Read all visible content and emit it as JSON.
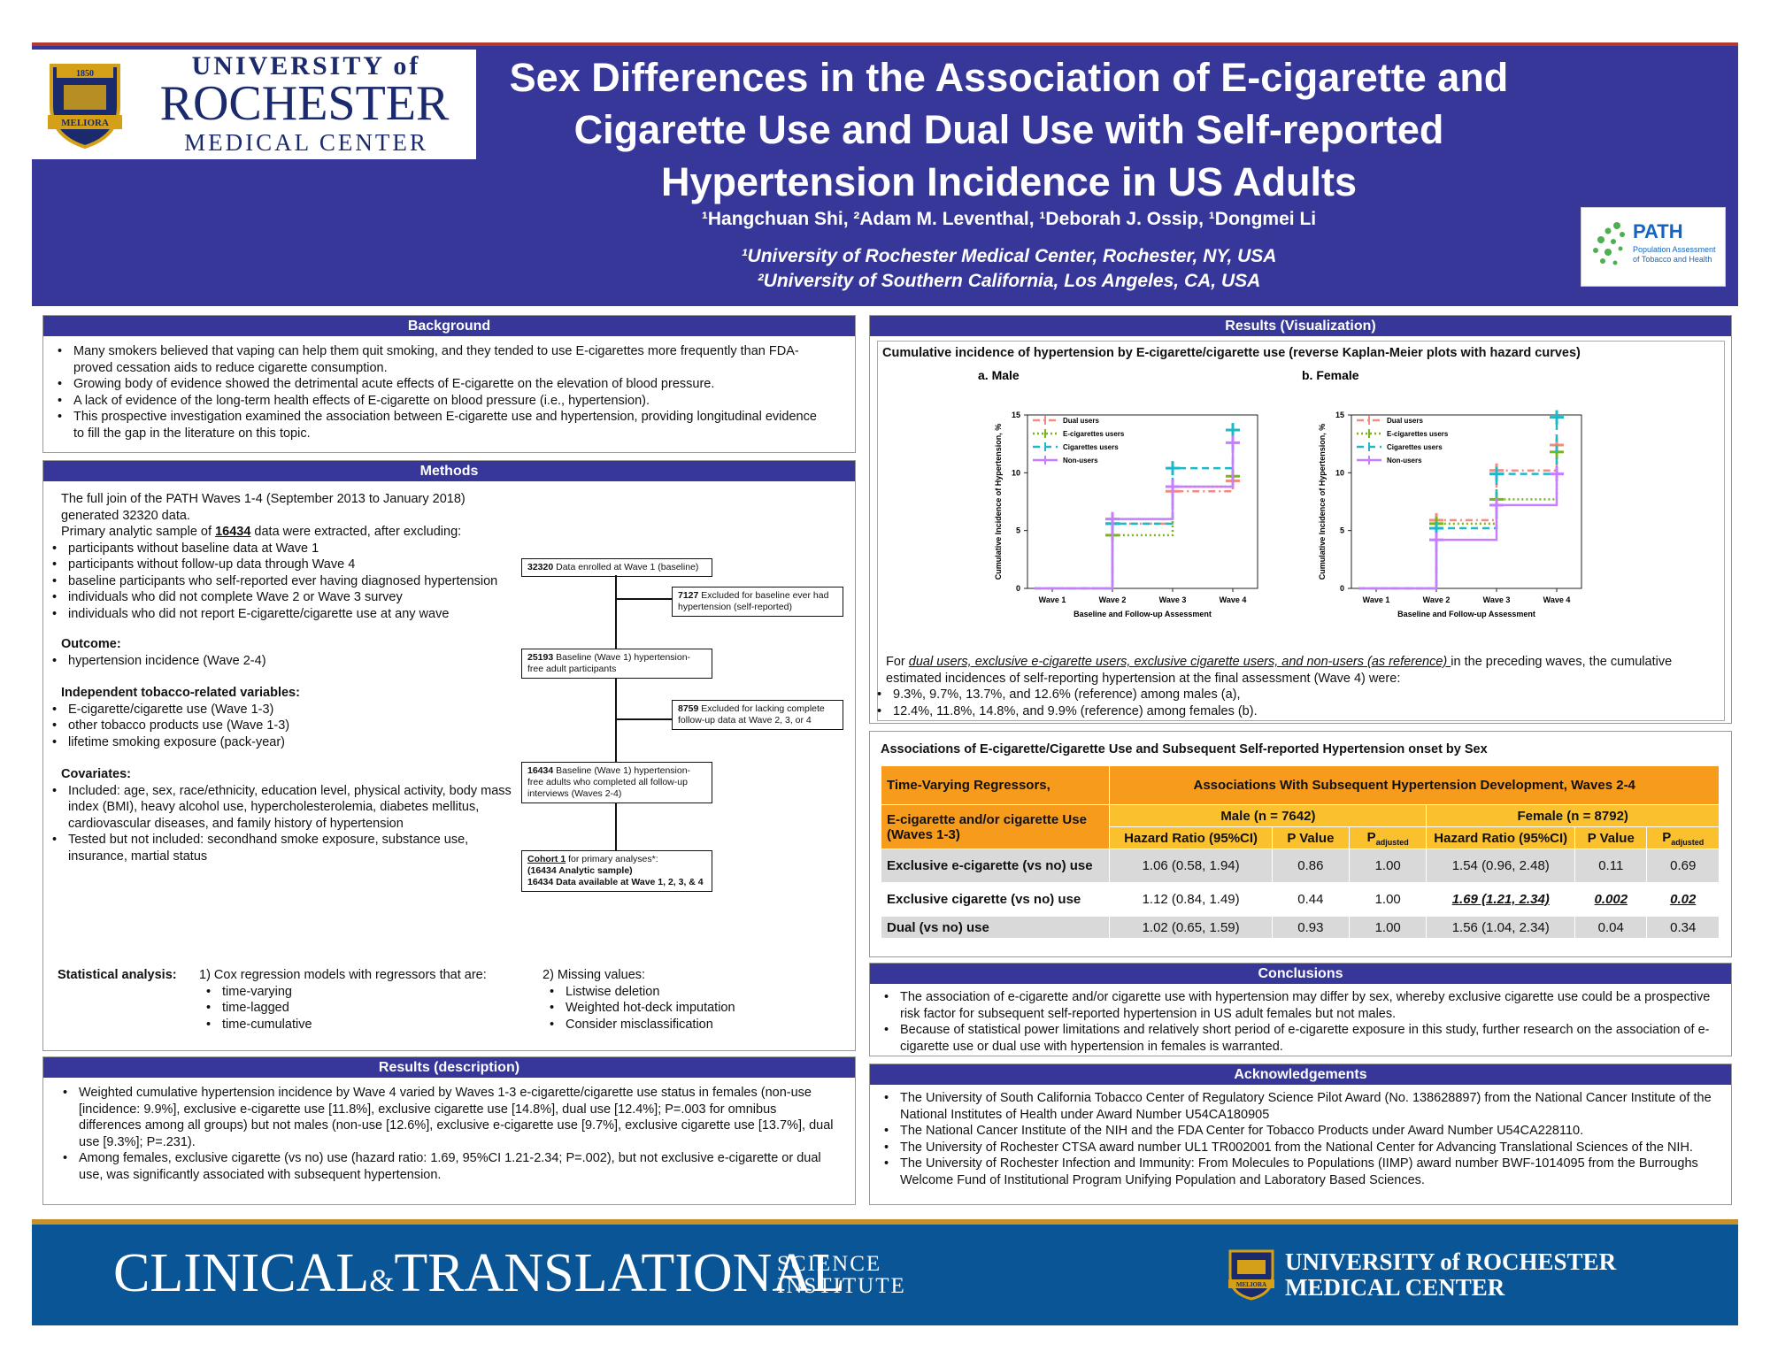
{
  "header": {
    "logo": {
      "line1": "UNIVERSITY of",
      "line2": "ROCHESTER",
      "line3": "MEDICAL CENTER",
      "seal_year": "1850",
      "seal_motto": "MELIORA"
    },
    "title": "Sex Differences in the Association of E-cigarette and Cigarette Use and Dual Use with Self-reported Hypertension Incidence in US Adults",
    "authors": "¹Hangchuan Shi, ²Adam M. Leventhal, ¹Deborah J. Ossip, ¹Dongmei Li",
    "affiliation1": "¹University of Rochester Medical Center, Rochester, NY, USA",
    "affiliation2": "²University of Southern California, Los Angeles, CA, USA",
    "path_logo": {
      "name": "PATH",
      "sub1": "Population Assessment",
      "sub2": "of Tobacco and Health"
    }
  },
  "background": {
    "heading": "Background",
    "items": [
      "Many smokers believed that vaping can help them quit smoking, and they tended to use E-cigarettes more frequently than FDA-proved cessation aids to reduce cigarette consumption.",
      "Growing body of evidence showed the detrimental acute effects of E-cigarette on the elevation of blood pressure.",
      "A lack of evidence of the long-term health effects of E-cigarette on blood pressure (i.e., hypertension).",
      "This prospective investigation examined the association between E-cigarette use and hypertension, providing longitudinal evidence to fill the gap in the literature on this topic."
    ]
  },
  "methods": {
    "heading": "Methods",
    "intro": "The full join of the PATH Waves 1-4 (September 2013 to January 2018) generated 32320 data.",
    "sample_pre": "Primary analytic sample of ",
    "sample_num": "16434",
    "sample_post": " data were extracted, after excluding:",
    "exclusions": [
      "participants without baseline data at Wave 1",
      "participants without follow-up data through Wave 4",
      "baseline participants who self-reported ever having diagnosed hypertension",
      "individuals who did not complete Wave 2 or Wave 3 survey",
      "individuals who did not report E-cigarette/cigarette use at any wave"
    ],
    "outcome_h": "Outcome:",
    "outcome": [
      "hypertension incidence (Wave 2-4)"
    ],
    "indep_h": "Independent tobacco-related variables:",
    "indep": [
      "E-cigarette/cigarette use (Wave 1-3)",
      "other tobacco products use (Wave 1-3)",
      "lifetime smoking exposure (pack-year)"
    ],
    "cov_h": "Covariates:",
    "cov": [
      "Included: age, sex, race/ethnicity, education level, physical activity, body mass index (BMI), heavy alcohol use, hypercholesterolemia, diabetes mellitus, cardiovascular diseases, and family history of hypertension",
      "Tested but not included: secondhand smoke exposure, substance use, insurance, martial status"
    ],
    "stat_h": "Statistical analysis:",
    "stat1_h": "1) Cox regression models with regressors that are:",
    "stat1": [
      "time-varying",
      "time-lagged",
      "time-cumulative"
    ],
    "stat2_h": "2) Missing values:",
    "stat2": [
      "Listwise deletion",
      "Weighted hot-deck imputation",
      "Consider misclassification"
    ],
    "flow": {
      "b1n": "32320",
      "b1t": " Data enrolled at Wave 1 (baseline)",
      "e1n": "7127",
      "e1t": " Excluded for baseline ever had hypertension (self-reported)",
      "b2n": "25193",
      "b2t": " Baseline (Wave 1) hypertension-free adult participants",
      "e2n": "8759",
      "e2t": " Excluded for lacking complete follow-up data at Wave 2, 3, or 4",
      "b3n": "16434",
      "b3t": " Baseline (Wave 1) hypertension-free adults who completed all follow-up interviews (Waves 2-4)",
      "b4a": "Cohort 1",
      "b4b": " for primary analyses*:",
      "b4c": "(16434 Analytic sample)",
      "b4dn": "16434",
      "b4d": " Data available at Wave 1, 2, 3, & 4"
    }
  },
  "results_desc": {
    "heading": "Results (description)",
    "items": [
      "Weighted cumulative hypertension incidence by Wave 4 varied by Waves 1-3 e-cigarette/cigarette use status in females (non-use [incidence: 9.9%], exclusive e-cigarette use [11.8%], exclusive cigarette use [14.8%], dual use [12.4%]; P=.003 for omnibus differences among all groups) but not males (non-use [12.6%], exclusive e-cigarette use [9.7%], exclusive cigarette use [13.7%], dual use [9.3%]; P=.231).",
      "Among females, exclusive cigarette (vs no) use (hazard ratio: 1.69, 95%CI 1.21-2.34; P=.002), but not exclusive e-cigarette or dual use, was significantly associated with subsequent hypertension."
    ]
  },
  "results_vis": {
    "heading": "Results (Visualization)",
    "fig_title": "Cumulative incidence of hypertension by E-cigarette/cigarette use (reverse Kaplan-Meier plots with hazard curves)",
    "summary_pre": "For ",
    "summary_u": "dual users, exclusive e-cigarette users, exclusive cigarette users, and non-users (as reference) ",
    "summary_post": "in the preceding waves, the cumulative estimated incidences of self-reporting hypertension at the final assessment (Wave 4) were:",
    "summary_items": [
      "9.3%, 9.7%, 13.7%, and 12.6% (reference) among males (a),",
      "12.4%, 11.8%, 14.8%, and 9.9% (reference) among females (b)."
    ]
  },
  "chart_data": [
    {
      "type": "line",
      "title": "a. Male",
      "xlabel": "Baseline and Follow-up Assessment",
      "ylabel": "Cumulative Incidence of Hypertension, %",
      "categories": [
        "Wave 1",
        "Wave 2",
        "Wave 3",
        "Wave 4"
      ],
      "ylim": [
        0,
        15
      ],
      "yticks": [
        0,
        5,
        10,
        15
      ],
      "legend": "top-left",
      "series": [
        {
          "name": "Dual users",
          "color": "#f28b82",
          "dash": "8,4,2,4",
          "values": [
            0,
            5.6,
            8.4,
            9.3
          ]
        },
        {
          "name": "E-cigarettes users",
          "color": "#7cb518",
          "dash": "2,3",
          "values": [
            0,
            4.6,
            8.8,
            9.7
          ]
        },
        {
          "name": "Cigarettes users",
          "color": "#1fb8c9",
          "dash": "8,5",
          "values": [
            0,
            5.6,
            10.4,
            13.7
          ]
        },
        {
          "name": "Non-users",
          "color": "#c77dff",
          "dash": "",
          "values": [
            0,
            6.0,
            8.8,
            12.6
          ]
        }
      ]
    },
    {
      "type": "line",
      "title": "b. Female",
      "xlabel": "Baseline and Follow-up Assessment",
      "ylabel": "Cumulative Incidence of Hypertension, %",
      "categories": [
        "Wave 1",
        "Wave 2",
        "Wave 3",
        "Wave 4"
      ],
      "ylim": [
        0,
        15
      ],
      "yticks": [
        0,
        5,
        10,
        15
      ],
      "legend": "top-left",
      "series": [
        {
          "name": "Dual users",
          "color": "#f28b82",
          "dash": "8,4,2,4",
          "values": [
            0,
            5.9,
            10.2,
            12.4
          ]
        },
        {
          "name": "E-cigarettes users",
          "color": "#7cb518",
          "dash": "2,3",
          "values": [
            0,
            5.6,
            7.7,
            11.8
          ]
        },
        {
          "name": "Cigarettes users",
          "color": "#1fb8c9",
          "dash": "8,5",
          "values": [
            0,
            5.2,
            9.9,
            14.8
          ]
        },
        {
          "name": "Non-users",
          "color": "#c77dff",
          "dash": "",
          "values": [
            0,
            4.2,
            7.2,
            9.9
          ]
        }
      ]
    }
  ],
  "assoc": {
    "title": "Associations of E-cigarette/Cigarette Use and Subsequent Self-reported Hypertension onset by Sex",
    "h_reg": "Time-Varying Regressors,",
    "h_assoc": "Associations With Subsequent Hypertension Development, Waves 2-4",
    "h_use": "E-cigarette and/or cigarette Use (Waves 1-3)",
    "h_male": "Male (n = 7642)",
    "h_female": "Female (n = 8792)",
    "h_hr": "Hazard Ratio (95%CI)",
    "h_p": "P Value",
    "h_padj": "P",
    "h_padj_sub": "adjusted",
    "rows": [
      {
        "label": "Exclusive e-cigarette (vs no) use",
        "m_hr": "1.06 (0.58, 1.94)",
        "m_p": "0.86",
        "m_pa": "1.00",
        "f_hr": "1.54 (0.96, 2.48)",
        "f_p": "0.11",
        "f_pa": "0.69"
      },
      {
        "label": "Exclusive cigarette (vs no) use",
        "m_hr": "1.12 (0.84, 1.49)",
        "m_p": "0.44",
        "m_pa": "1.00",
        "f_hr": "1.69 (1.21, 2.34)",
        "f_p": "0.002",
        "f_pa": "0.02"
      },
      {
        "label": "Dual (vs no) use",
        "m_hr": "1.02 (0.65, 1.59)",
        "m_p": "0.93",
        "m_pa": "1.00",
        "f_hr": "1.56 (1.04, 2.34)",
        "f_p": "0.04",
        "f_pa": "0.34"
      }
    ]
  },
  "conclusions": {
    "heading": "Conclusions",
    "items": [
      "The association of e-cigarette and/or cigarette use with hypertension may differ by sex, whereby exclusive cigarette use could be a prospective risk factor for subsequent self-reported hypertension in US adult females but not males.",
      "Because of statistical power limitations and relatively short period of e-cigarette exposure in this study, further research on the association of e-cigarette use or dual use with hypertension in females is warranted."
    ]
  },
  "ack": {
    "heading": "Acknowledgements",
    "items": [
      "The University of South California Tobacco Center of Regulatory Science Pilot Award (No. 138628897) from the National Cancer Institute of the National Institutes of Health under Award Number U54CA180905",
      "The National Cancer Institute of the NIH and the FDA Center for Tobacco Products under Award Number U54CA228110.",
      "The University of Rochester CTSA award number UL1 TR002001 from the National Center for Advancing Translational Sciences of the NIH.",
      "The University of Rochester Infection and Immunity: From Molecules to Populations (IIMP) award number BWF-1014095 from the Burroughs Welcome Fund of Institutional Program Unifying Population and Laboratory Based Sciences."
    ]
  },
  "footer": {
    "ctsi_a": "CLINICAL",
    "ctsi_amp": "&",
    "ctsi_b": "TRANSLATIONAL",
    "ctsi_c": "SCIENCE",
    "ctsi_d": "INSTITUTE",
    "urmc1": "UNIVERSITY of ROCHESTER",
    "urmc2": "MEDICAL CENTER",
    "seal": "MELIORA"
  },
  "colors": {
    "navy": "#37379a",
    "orange": "#f79b1c",
    "yellow": "#fbc02d",
    "footer": "#0a5596"
  }
}
